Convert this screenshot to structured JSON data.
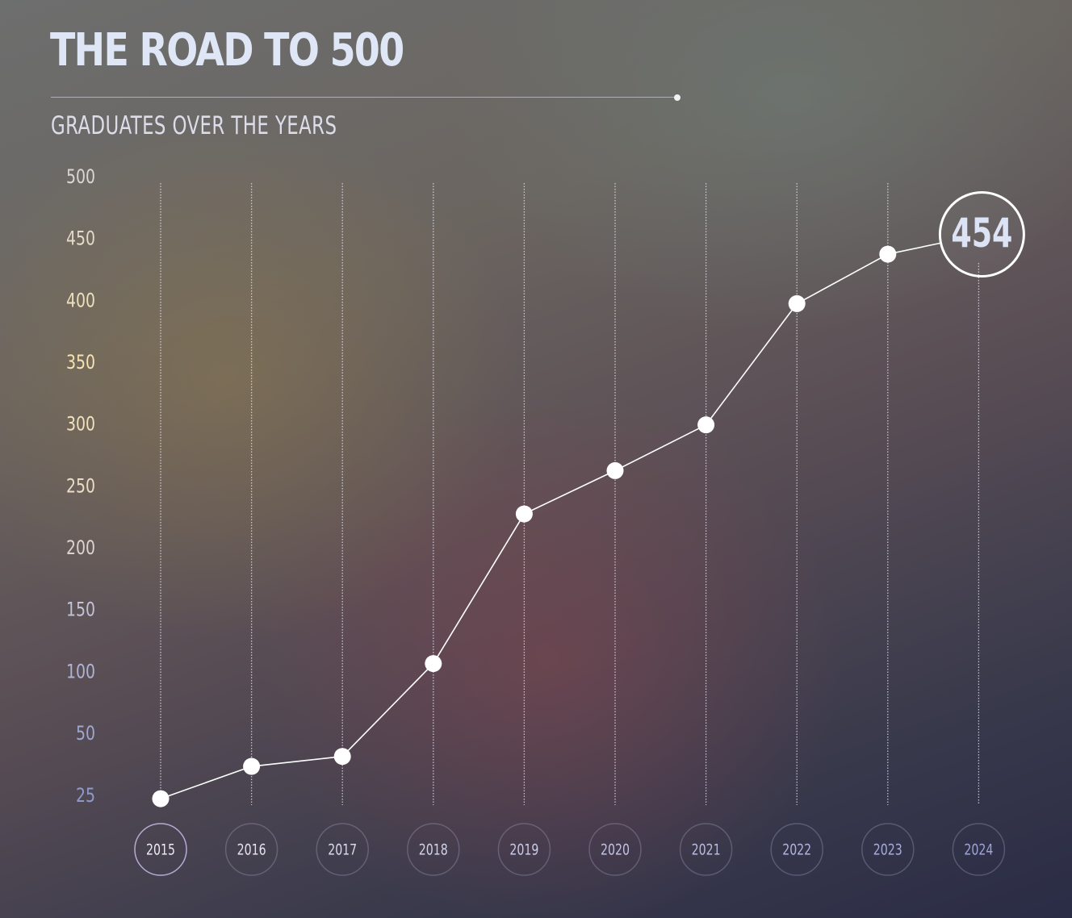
{
  "header": {
    "title": "THE ROAD TO 500",
    "subtitle": "GRADUATES OVER THE YEARS"
  },
  "chart_data": {
    "type": "line",
    "title": "THE ROAD TO 500",
    "subtitle": "GRADUATES OVER THE YEARS",
    "xlabel": "",
    "ylabel": "",
    "x": [
      "2015",
      "2016",
      "2017",
      "2018",
      "2019",
      "2020",
      "2021",
      "2022",
      "2023",
      "2024"
    ],
    "series": [
      {
        "values": [
          24,
          37,
          41,
          107,
          228,
          263,
          300,
          398,
          438,
          454
        ]
      }
    ],
    "y_ticks": [
      25,
      50,
      100,
      150,
      200,
      250,
      300,
      350,
      400,
      450,
      500
    ],
    "highlight": {
      "label": "2024",
      "value_label": "454"
    },
    "grid": "vertical dotted lines per year",
    "legend": "none",
    "colors": {
      "line": "#ffffff",
      "marker": "#ffffff",
      "ytick_high": "#f6e4b2",
      "ytick_low": "#98a3cf"
    }
  }
}
